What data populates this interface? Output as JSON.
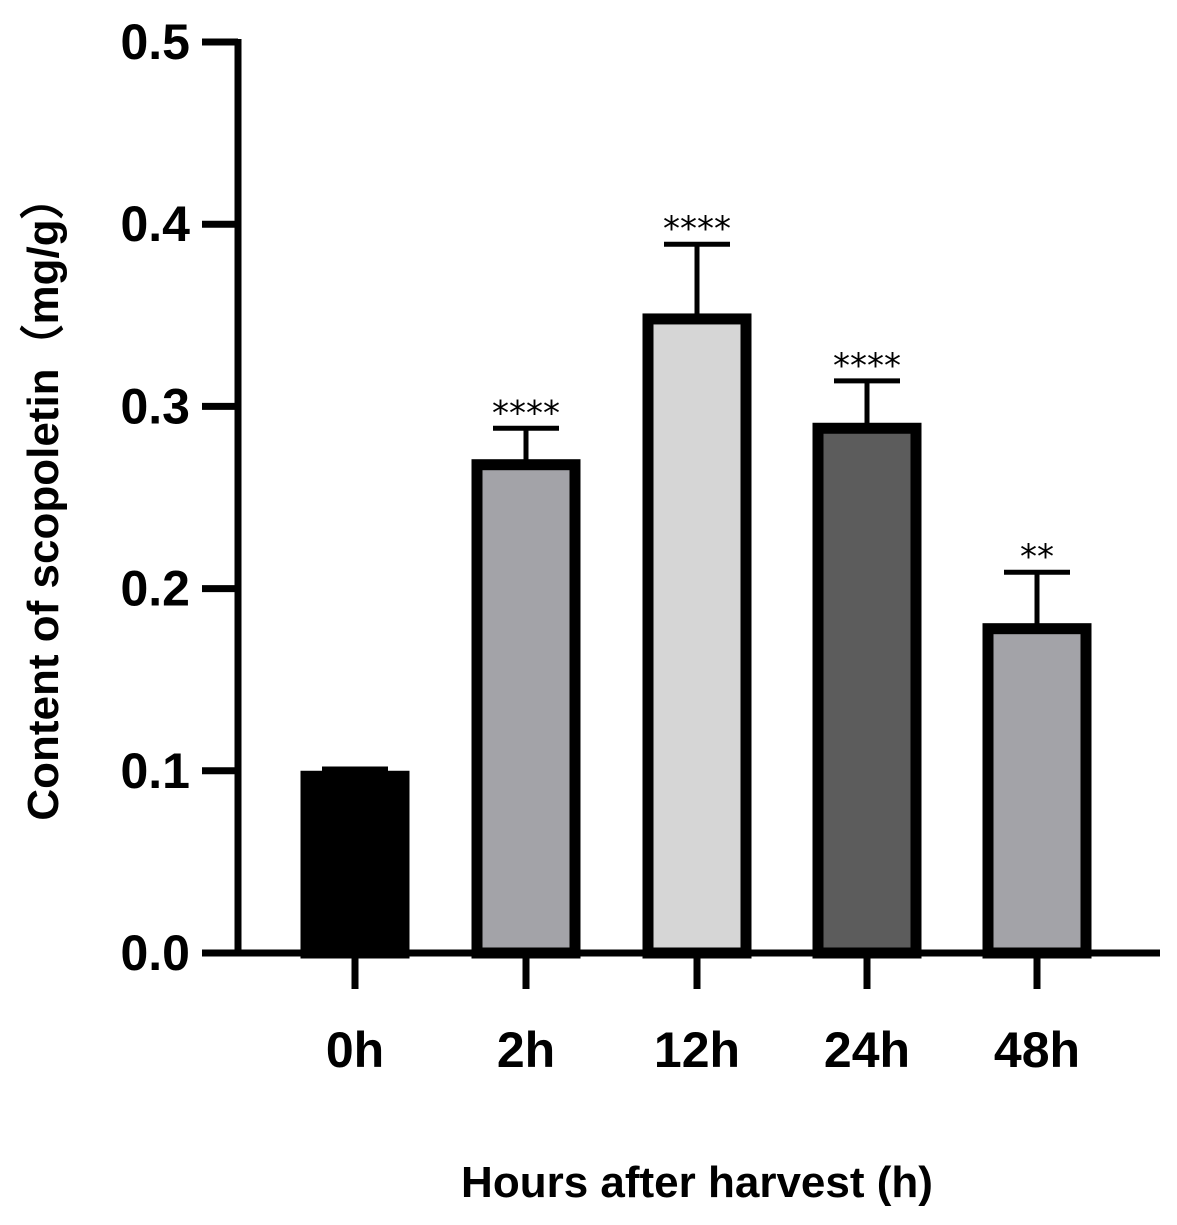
{
  "chart_data": {
    "type": "bar",
    "title": "",
    "xlabel": "Hours after harvest (h)",
    "ylabel": "Content of scopoletin（mg/g）",
    "categories": [
      "0h",
      "2h",
      "12h",
      "24h",
      "48h"
    ],
    "values": [
      0.097,
      0.268,
      0.348,
      0.288,
      0.178
    ],
    "errors": [
      0.004,
      0.02,
      0.041,
      0.026,
      0.031
    ],
    "significance": [
      "",
      "****",
      "****",
      "****",
      "**"
    ],
    "bar_colors": [
      "#000000",
      "#a3a3a8",
      "#d6d6d6",
      "#5c5c5c",
      "#a3a3a8"
    ],
    "ylim": [
      0,
      0.5
    ],
    "yticks": [
      "0.0",
      "0.1",
      "0.2",
      "0.3",
      "0.4",
      "0.5"
    ],
    "grid": false,
    "legend": "none"
  }
}
